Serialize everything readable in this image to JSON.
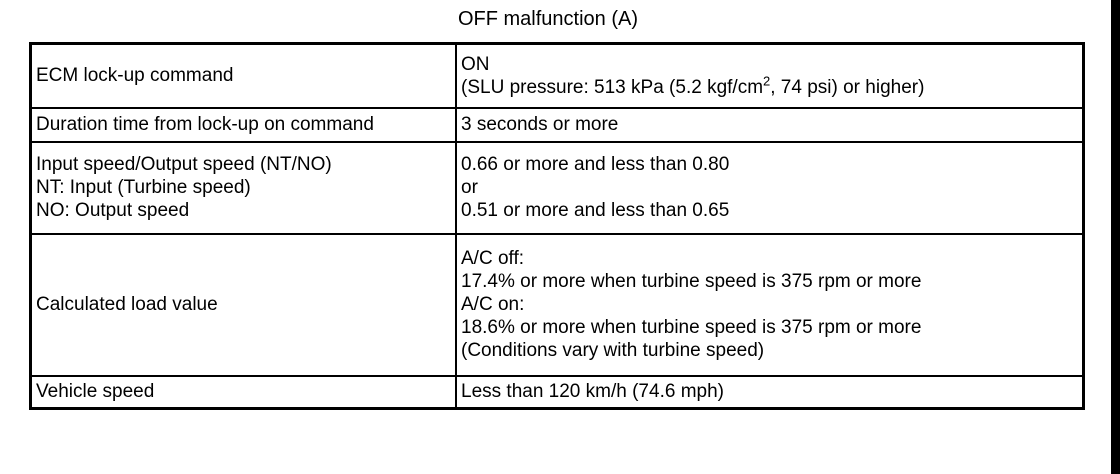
{
  "title": "OFF malfunction (A)",
  "rows": [
    {
      "condition": [
        "ECM lock-up command"
      ],
      "value_line1": "ON",
      "value_line2_pre": "(SLU pressure: 513 kPa (5.2 kgf/cm",
      "value_line2_sup": "2",
      "value_line2_post": ", 74 psi) or higher)"
    },
    {
      "condition": [
        "Duration time from lock-up on command"
      ],
      "value": [
        "3 seconds or more"
      ]
    },
    {
      "condition": [
        "Input speed/Output speed (NT/NO)",
        "NT: Input (Turbine speed)",
        "NO: Output speed"
      ],
      "value": [
        "0.66 or more and less than 0.80",
        "or",
        "0.51 or more and less than 0.65"
      ]
    },
    {
      "condition": [
        "Calculated load value"
      ],
      "value": [
        "A/C off:",
        "17.4% or more when turbine speed is 375 rpm or more",
        "A/C on:",
        "18.6% or more when turbine speed is 375 rpm or more",
        "(Conditions vary with turbine speed)"
      ]
    },
    {
      "condition": [
        "Vehicle speed"
      ],
      "value": [
        "Less than 120 km/h (74.6 mph)"
      ]
    }
  ]
}
